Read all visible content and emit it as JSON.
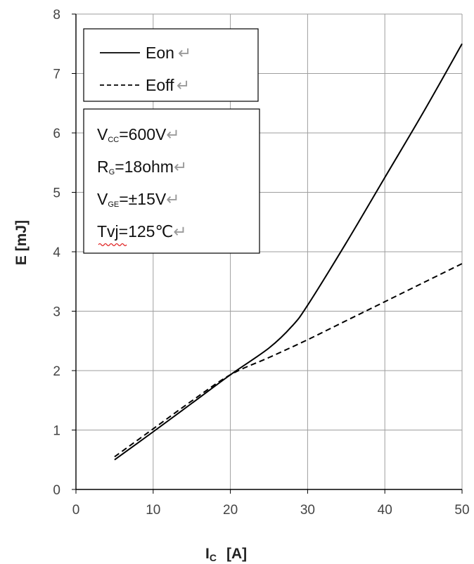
{
  "chart_data": {
    "type": "line",
    "xlabel": "I",
    "xlabel_sub": "C",
    "xlabel_unit": "[A]",
    "ylabel": "E [mJ]",
    "xlim": [
      0,
      50
    ],
    "ylim": [
      0,
      8
    ],
    "x_ticks": [
      "0",
      "10",
      "20",
      "30",
      "40",
      "50"
    ],
    "y_ticks": [
      "0",
      "1",
      "2",
      "3",
      "4",
      "5",
      "6",
      "7",
      "8"
    ],
    "grid": true,
    "legend_position": "top-left",
    "series": [
      {
        "name": "Eon",
        "style": "solid",
        "color": "#000000",
        "x": [
          5,
          10,
          15,
          20,
          25,
          28,
          30,
          35,
          40,
          45,
          50
        ],
        "y": [
          0.5,
          0.97,
          1.45,
          1.93,
          2.38,
          2.75,
          3.1,
          4.15,
          5.25,
          6.35,
          7.5
        ]
      },
      {
        "name": "Eoff",
        "style": "dashed",
        "color": "#000000",
        "x": [
          5,
          10,
          15,
          20,
          25,
          30,
          35,
          40,
          45,
          50
        ],
        "y": [
          0.55,
          1.02,
          1.49,
          1.93,
          2.22,
          2.52,
          2.84,
          3.16,
          3.48,
          3.8
        ]
      }
    ],
    "conditions": [
      {
        "main": "V",
        "sub": "CC",
        "rest": "=600V"
      },
      {
        "main": "R",
        "sub": "G",
        "rest": "=18ohm"
      },
      {
        "main": "V",
        "sub": "GE",
        "rest": "=±15V"
      },
      {
        "main": "Tvj",
        "sub": "",
        "rest": "=125℃"
      }
    ],
    "paragraph_mark": "↵"
  }
}
